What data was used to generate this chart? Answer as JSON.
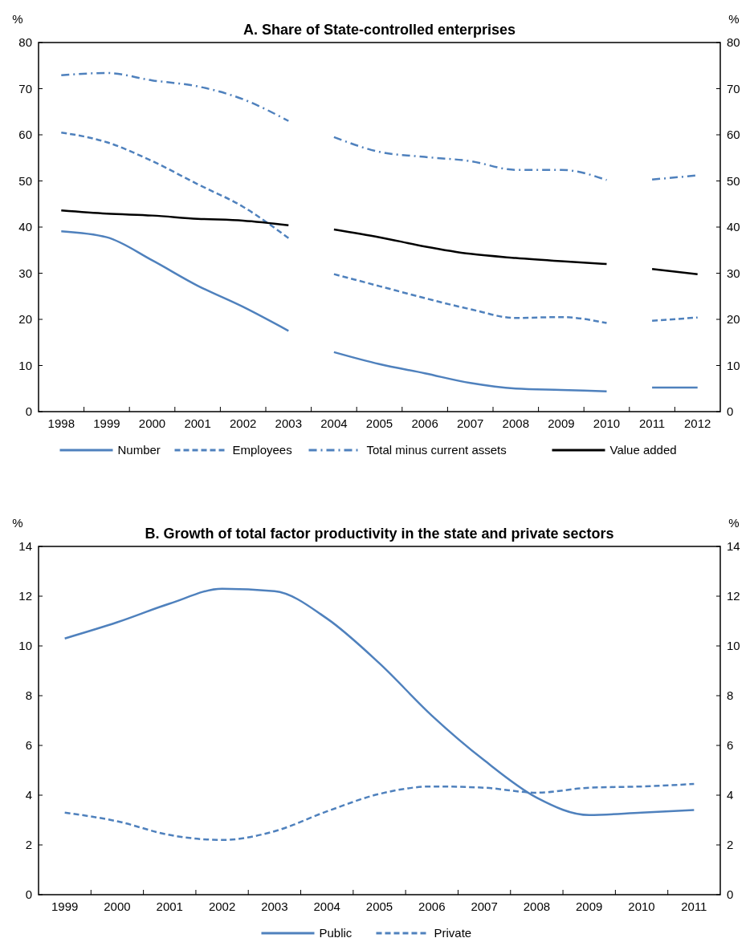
{
  "chart_data": [
    {
      "type": "line",
      "title": "A. Share of State-controlled enterprises",
      "ylabel": "%",
      "y2label": "%",
      "x": [
        1998,
        1999,
        2000,
        2001,
        2002,
        2003,
        2003.5,
        2004,
        2005,
        2006,
        2007,
        2008,
        2009,
        2010,
        2010.5,
        2011,
        2012
      ],
      "xlim": [
        1997.5,
        2012.5
      ],
      "xticks": [
        1998,
        1999,
        2000,
        2001,
        2002,
        2003,
        2004,
        2005,
        2006,
        2007,
        2008,
        2009,
        2010,
        2011,
        2012
      ],
      "ylim": [
        0,
        80
      ],
      "yticks": [
        0,
        10,
        20,
        30,
        40,
        50,
        60,
        70,
        80
      ],
      "y2lim": [
        0,
        80
      ],
      "y2ticks": [
        0,
        10,
        20,
        30,
        40,
        50,
        60,
        70,
        80
      ],
      "series": [
        {
          "name": "Number",
          "color": "#4f81bd",
          "line_style": "solid",
          "values": [
            39.1,
            37.8,
            32.8,
            27.3,
            22.7,
            17.5,
            null,
            12.9,
            10.3,
            8.3,
            6.2,
            5.0,
            4.7,
            4.4,
            null,
            5.2,
            5.2
          ]
        },
        {
          "name": "Employees",
          "color": "#4f81bd",
          "line_style": "dashed",
          "values": [
            60.5,
            58.4,
            54.3,
            49.3,
            44.4,
            37.6,
            null,
            29.8,
            27.2,
            24.6,
            22.2,
            20.3,
            20.5,
            19.2,
            null,
            19.7,
            20.4
          ]
        },
        {
          "name": "Total minus current assets",
          "color": "#4f81bd",
          "line_style": "dashdot",
          "values": [
            72.9,
            73.4,
            71.8,
            70.5,
            67.7,
            63.0,
            null,
            59.5,
            56.3,
            55.2,
            54.3,
            52.4,
            52.4,
            50.2,
            null,
            50.3,
            51.2
          ]
        },
        {
          "name": "Value added",
          "color": "#000000",
          "line_style": "solid",
          "values": [
            43.6,
            42.9,
            42.5,
            41.8,
            41.4,
            40.4,
            null,
            39.5,
            37.8,
            35.8,
            34.2,
            33.3,
            32.6,
            32.0,
            null,
            30.9,
            29.8
          ]
        }
      ],
      "legend": "bottom",
      "grid": false
    },
    {
      "type": "line",
      "title": "B. Growth of total factor productivity in the state and private sectors",
      "ylabel": "%",
      "y2label": "%",
      "categories": [
        "1999",
        "2000",
        "2001",
        "2002",
        "2003",
        "2004",
        "2005",
        "2006",
        "2007",
        "2008",
        "2009",
        "2010",
        "2011"
      ],
      "ylim": [
        0,
        14
      ],
      "yticks": [
        0,
        2,
        4,
        6,
        8,
        10,
        12,
        14
      ],
      "y2lim": [
        0,
        14
      ],
      "y2ticks": [
        0,
        2,
        4,
        6,
        8,
        10,
        12,
        14
      ],
      "series": [
        {
          "name": "Public",
          "color": "#4f81bd",
          "line_style": "solid",
          "values": [
            10.3,
            10.95,
            11.7,
            12.3,
            12.2,
            11.1,
            9.3,
            7.2,
            5.4,
            3.9,
            3.2,
            3.3,
            3.4
          ]
        },
        {
          "name": "Private",
          "color": "#4f81bd",
          "line_style": "dashed",
          "values": [
            3.3,
            2.95,
            2.4,
            2.2,
            2.55,
            3.35,
            4.05,
            4.35,
            4.3,
            4.1,
            4.3,
            4.35,
            4.45
          ]
        }
      ],
      "legend": "bottom",
      "grid": false
    }
  ]
}
